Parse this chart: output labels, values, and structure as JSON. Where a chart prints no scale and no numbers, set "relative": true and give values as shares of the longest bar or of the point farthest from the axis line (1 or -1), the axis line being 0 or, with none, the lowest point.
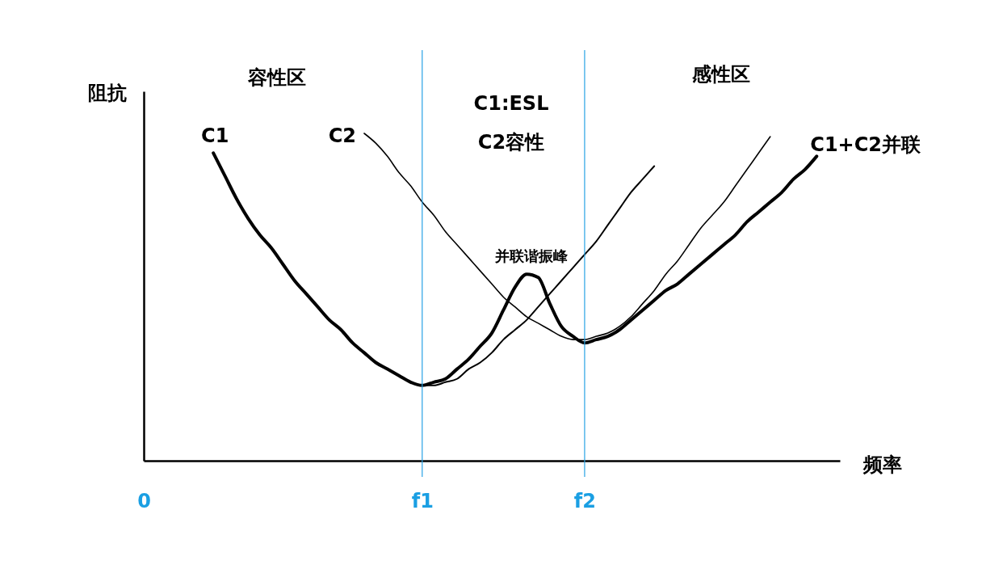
{
  "chart_data": {
    "type": "line",
    "relative": true,
    "xlabel": "频率",
    "ylabel": "阻抗",
    "categories": [
      "0",
      null,
      null,
      null,
      null,
      null,
      null,
      null,
      null,
      null,
      null,
      null,
      null,
      null,
      null,
      null,
      null,
      null,
      null,
      null,
      null,
      null,
      null,
      null,
      "f1",
      null,
      null,
      null,
      null,
      null,
      null,
      null,
      null,
      null,
      null,
      null,
      null,
      null,
      "f2",
      null,
      null,
      null,
      null,
      null,
      null,
      null,
      null,
      null,
      null,
      null,
      null,
      null,
      null,
      null,
      null,
      null,
      null,
      null,
      null,
      null,
      null
    ],
    "series": [
      {
        "name": "C1",
        "color": "#000000",
        "values": [
          null,
          null,
          null,
          null,
          null,
          null,
          0.94,
          0.87,
          0.8,
          0.74,
          0.69,
          0.65,
          0.6,
          0.55,
          0.51,
          0.47,
          0.43,
          0.4,
          0.36,
          0.33,
          0.3,
          0.28,
          0.26,
          0.24,
          0.23,
          0.23,
          0.24,
          0.25,
          0.28,
          0.3,
          0.33,
          0.37,
          0.4,
          0.43,
          0.47,
          0.51,
          0.55,
          0.59,
          0.63,
          0.67,
          0.72,
          0.77,
          0.82,
          0.86,
          0.9,
          null,
          null,
          null,
          null,
          null,
          null,
          null,
          null,
          null,
          null,
          null,
          null,
          null,
          null,
          null,
          null
        ]
      },
      {
        "name": "C2",
        "color": "#000000",
        "values": [
          null,
          null,
          null,
          null,
          null,
          null,
          null,
          null,
          null,
          null,
          null,
          null,
          null,
          null,
          null,
          null,
          null,
          null,
          null,
          1,
          0.97,
          0.93,
          0.88,
          0.84,
          0.79,
          0.75,
          0.7,
          0.66,
          0.62,
          0.58,
          0.54,
          0.5,
          0.47,
          0.44,
          0.42,
          0.4,
          0.38,
          0.37,
          0.37,
          0.38,
          0.39,
          0.41,
          0.44,
          0.48,
          0.52,
          0.57,
          0.61,
          0.66,
          0.71,
          0.75,
          0.79,
          0.84,
          0.89,
          0.94,
          0.99,
          null,
          null,
          null,
          null,
          null,
          null
        ]
      },
      {
        "name": "C1+C2并联",
        "color": "#000000",
        "values": [
          null,
          null,
          null,
          null,
          null,
          null,
          0.94,
          0.87,
          0.8,
          0.74,
          0.69,
          0.65,
          0.6,
          0.55,
          0.51,
          0.47,
          0.43,
          0.4,
          0.36,
          0.33,
          0.3,
          0.28,
          0.26,
          0.24,
          0.23,
          0.24,
          0.25,
          0.28,
          0.31,
          0.35,
          0.39,
          0.46,
          0.53,
          0.57,
          0.56,
          0.48,
          0.41,
          0.38,
          0.36,
          0.37,
          0.38,
          0.4,
          0.43,
          0.46,
          0.49,
          0.52,
          0.54,
          0.57,
          0.6,
          0.63,
          0.66,
          0.69,
          0.73,
          0.76,
          0.79,
          0.82,
          0.86,
          0.89,
          0.93,
          null,
          null
        ]
      }
    ],
    "ref_lines": [
      {
        "axis": "x",
        "value": "f1",
        "color": "#27a2e5"
      },
      {
        "axis": "x",
        "value": "f2",
        "color": "#27a2e5"
      }
    ],
    "annotations": [
      "容性区",
      "C1:ESL",
      "C2容性",
      "感性区",
      {
        "text": "并联谐振峰",
        "y": 0.57
      }
    ]
  }
}
